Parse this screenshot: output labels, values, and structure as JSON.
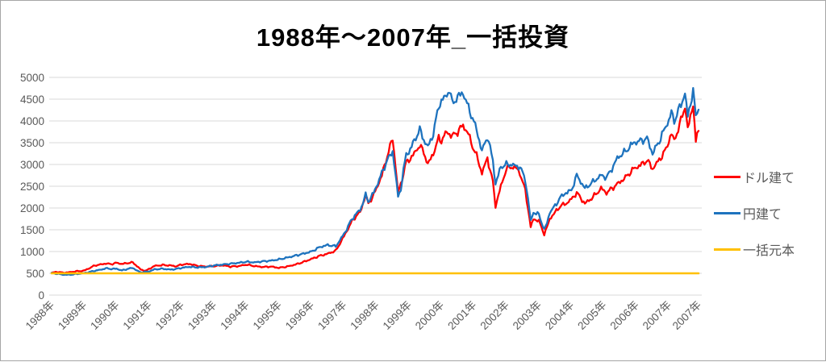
{
  "page": {
    "background": "#FFFFFF",
    "border_color": "#A6A6A6"
  },
  "colors": {
    "grid": "#D9D9D9",
    "axis_text": "#595959",
    "title_text": "#000000"
  },
  "chart_data": {
    "type": "line",
    "title": "1988年～2007年_一括投資",
    "legend_position": "right",
    "grid": "horizontal",
    "y_axis": {
      "min": 0,
      "max": 5000,
      "ticks": [
        0,
        500,
        1000,
        1500,
        2000,
        2500,
        3000,
        3500,
        4000,
        4500,
        5000
      ]
    },
    "x_axis": {
      "tick_labels": [
        "1988年",
        "1989年",
        "1990年",
        "1991年",
        "1992年",
        "1993年",
        "1994年",
        "1995年",
        "1996年",
        "1997年",
        "1998年",
        "1999年",
        "2000年",
        "2001年",
        "2002年",
        "2003年",
        "2004年",
        "2005年",
        "2006年",
        "2007年",
        "2007年"
      ],
      "tick_months": [
        0,
        12,
        24,
        36,
        48,
        60,
        72,
        84,
        96,
        108,
        120,
        132,
        144,
        156,
        168,
        180,
        192,
        204,
        216,
        228,
        239
      ],
      "months_total": 240
    },
    "series": [
      {
        "key": "dollar",
        "name": "ドル建て",
        "color": "#FF0000",
        "points": [
          [
            0,
            510
          ],
          [
            2,
            535
          ],
          [
            4,
            515
          ],
          [
            6,
            520
          ],
          [
            9,
            545
          ],
          [
            12,
            560
          ],
          [
            14,
            620
          ],
          [
            16,
            680
          ],
          [
            18,
            700
          ],
          [
            20,
            725
          ],
          [
            22,
            710
          ],
          [
            24,
            740
          ],
          [
            26,
            715
          ],
          [
            28,
            735
          ],
          [
            30,
            750
          ],
          [
            32,
            640
          ],
          [
            33,
            580
          ],
          [
            35,
            560
          ],
          [
            36,
            600
          ],
          [
            38,
            670
          ],
          [
            41,
            690
          ],
          [
            44,
            680
          ],
          [
            46,
            660
          ],
          [
            48,
            700
          ],
          [
            51,
            715
          ],
          [
            54,
            670
          ],
          [
            57,
            655
          ],
          [
            60,
            665
          ],
          [
            63,
            685
          ],
          [
            66,
            655
          ],
          [
            69,
            665
          ],
          [
            72,
            700
          ],
          [
            75,
            665
          ],
          [
            78,
            645
          ],
          [
            81,
            655
          ],
          [
            84,
            625
          ],
          [
            87,
            655
          ],
          [
            90,
            700
          ],
          [
            93,
            760
          ],
          [
            96,
            830
          ],
          [
            99,
            900
          ],
          [
            102,
            950
          ],
          [
            105,
            1020
          ],
          [
            108,
            1350
          ],
          [
            111,
            1700
          ],
          [
            113,
            1850
          ],
          [
            114,
            1900
          ],
          [
            116,
            2300
          ],
          [
            117,
            2100
          ],
          [
            119,
            2300
          ],
          [
            120,
            2450
          ],
          [
            122,
            2750
          ],
          [
            124,
            3200
          ],
          [
            126,
            3600
          ],
          [
            127,
            3000
          ],
          [
            128,
            2350
          ],
          [
            129,
            2550
          ],
          [
            131,
            3050
          ],
          [
            132,
            3100
          ],
          [
            134,
            3250
          ],
          [
            136,
            3450
          ],
          [
            138,
            3200
          ],
          [
            139,
            3000
          ],
          [
            141,
            3250
          ],
          [
            143,
            3600
          ],
          [
            144,
            3550
          ],
          [
            146,
            3750
          ],
          [
            148,
            3650
          ],
          [
            150,
            3750
          ],
          [
            152,
            3900
          ],
          [
            154,
            3700
          ],
          [
            155,
            3500
          ],
          [
            157,
            3200
          ],
          [
            159,
            2800
          ],
          [
            161,
            3150
          ],
          [
            163,
            2600
          ],
          [
            164,
            2050
          ],
          [
            166,
            2500
          ],
          [
            168,
            2900
          ],
          [
            170,
            2950
          ],
          [
            172,
            2900
          ],
          [
            173,
            2800
          ],
          [
            175,
            2400
          ],
          [
            176,
            2000
          ],
          [
            177,
            1550
          ],
          [
            178,
            1750
          ],
          [
            180,
            1700
          ],
          [
            182,
            1400
          ],
          [
            183,
            1550
          ],
          [
            184,
            1750
          ],
          [
            186,
            1900
          ],
          [
            188,
            2050
          ],
          [
            190,
            2100
          ],
          [
            192,
            2200
          ],
          [
            194,
            2350
          ],
          [
            197,
            2100
          ],
          [
            200,
            2250
          ],
          [
            203,
            2450
          ],
          [
            205,
            2350
          ],
          [
            207,
            2450
          ],
          [
            209,
            2550
          ],
          [
            212,
            2700
          ],
          [
            215,
            2900
          ],
          [
            218,
            3000
          ],
          [
            220,
            3100
          ],
          [
            222,
            2900
          ],
          [
            225,
            3150
          ],
          [
            227,
            3350
          ],
          [
            228,
            3550
          ],
          [
            229,
            3700
          ],
          [
            230,
            3550
          ],
          [
            232,
            3900
          ],
          [
            234,
            4350
          ],
          [
            235,
            3800
          ],
          [
            237,
            4400
          ],
          [
            238,
            3500
          ],
          [
            239,
            3800
          ]
        ]
      },
      {
        "key": "yen",
        "name": "円建て",
        "color": "#1E73BE",
        "points": [
          [
            0,
            505
          ],
          [
            2,
            490
          ],
          [
            4,
            470
          ],
          [
            6,
            465
          ],
          [
            8,
            475
          ],
          [
            10,
            490
          ],
          [
            12,
            505
          ],
          [
            14,
            530
          ],
          [
            16,
            560
          ],
          [
            18,
            580
          ],
          [
            20,
            615
          ],
          [
            22,
            600
          ],
          [
            24,
            605
          ],
          [
            26,
            565
          ],
          [
            28,
            600
          ],
          [
            30,
            625
          ],
          [
            32,
            545
          ],
          [
            33,
            520
          ],
          [
            35,
            535
          ],
          [
            36,
            545
          ],
          [
            38,
            590
          ],
          [
            41,
            605
          ],
          [
            44,
            585
          ],
          [
            46,
            600
          ],
          [
            48,
            625
          ],
          [
            51,
            650
          ],
          [
            54,
            635
          ],
          [
            57,
            645
          ],
          [
            60,
            680
          ],
          [
            63,
            700
          ],
          [
            66,
            720
          ],
          [
            69,
            740
          ],
          [
            72,
            765
          ],
          [
            75,
            750
          ],
          [
            78,
            775
          ],
          [
            81,
            790
          ],
          [
            84,
            820
          ],
          [
            87,
            860
          ],
          [
            90,
            905
          ],
          [
            93,
            950
          ],
          [
            96,
            1000
          ],
          [
            99,
            1100
          ],
          [
            102,
            1150
          ],
          [
            105,
            1120
          ],
          [
            108,
            1400
          ],
          [
            111,
            1750
          ],
          [
            113,
            1900
          ],
          [
            114,
            1950
          ],
          [
            116,
            2300
          ],
          [
            117,
            2150
          ],
          [
            119,
            2350
          ],
          [
            120,
            2500
          ],
          [
            122,
            2800
          ],
          [
            124,
            3100
          ],
          [
            126,
            3300
          ],
          [
            127,
            2800
          ],
          [
            128,
            2250
          ],
          [
            129,
            2450
          ],
          [
            131,
            3250
          ],
          [
            132,
            3280
          ],
          [
            134,
            3550
          ],
          [
            136,
            3800
          ],
          [
            138,
            3500
          ],
          [
            139,
            3400
          ],
          [
            141,
            3700
          ],
          [
            143,
            4350
          ],
          [
            144,
            4450
          ],
          [
            146,
            4600
          ],
          [
            147,
            4720
          ],
          [
            148,
            4400
          ],
          [
            150,
            4550
          ],
          [
            152,
            4650
          ],
          [
            154,
            4300
          ],
          [
            155,
            4150
          ],
          [
            157,
            3800
          ],
          [
            159,
            3300
          ],
          [
            161,
            3650
          ],
          [
            163,
            3100
          ],
          [
            164,
            2550
          ],
          [
            166,
            2950
          ],
          [
            168,
            3000
          ],
          [
            170,
            3000
          ],
          [
            172,
            2950
          ],
          [
            173,
            2950
          ],
          [
            175,
            2650
          ],
          [
            176,
            2200
          ],
          [
            177,
            1700
          ],
          [
            178,
            1900
          ],
          [
            180,
            1850
          ],
          [
            182,
            1500
          ],
          [
            183,
            1650
          ],
          [
            184,
            1900
          ],
          [
            186,
            2050
          ],
          [
            188,
            2250
          ],
          [
            190,
            2350
          ],
          [
            192,
            2400
          ],
          [
            194,
            2750
          ],
          [
            197,
            2450
          ],
          [
            200,
            2600
          ],
          [
            203,
            2750
          ],
          [
            205,
            2700
          ],
          [
            207,
            2900
          ],
          [
            209,
            3150
          ],
          [
            212,
            3300
          ],
          [
            215,
            3500
          ],
          [
            218,
            3550
          ],
          [
            220,
            3600
          ],
          [
            222,
            3250
          ],
          [
            225,
            3600
          ],
          [
            227,
            3900
          ],
          [
            228,
            4000
          ],
          [
            229,
            4200
          ],
          [
            230,
            4000
          ],
          [
            232,
            4300
          ],
          [
            234,
            4630
          ],
          [
            235,
            4100
          ],
          [
            237,
            4700
          ],
          [
            238,
            4080
          ],
          [
            239,
            4350
          ]
        ]
      },
      {
        "key": "principal",
        "name": "一括元本",
        "color": "#FFC000",
        "points": [
          [
            0,
            500
          ],
          [
            239,
            500
          ]
        ]
      }
    ]
  }
}
